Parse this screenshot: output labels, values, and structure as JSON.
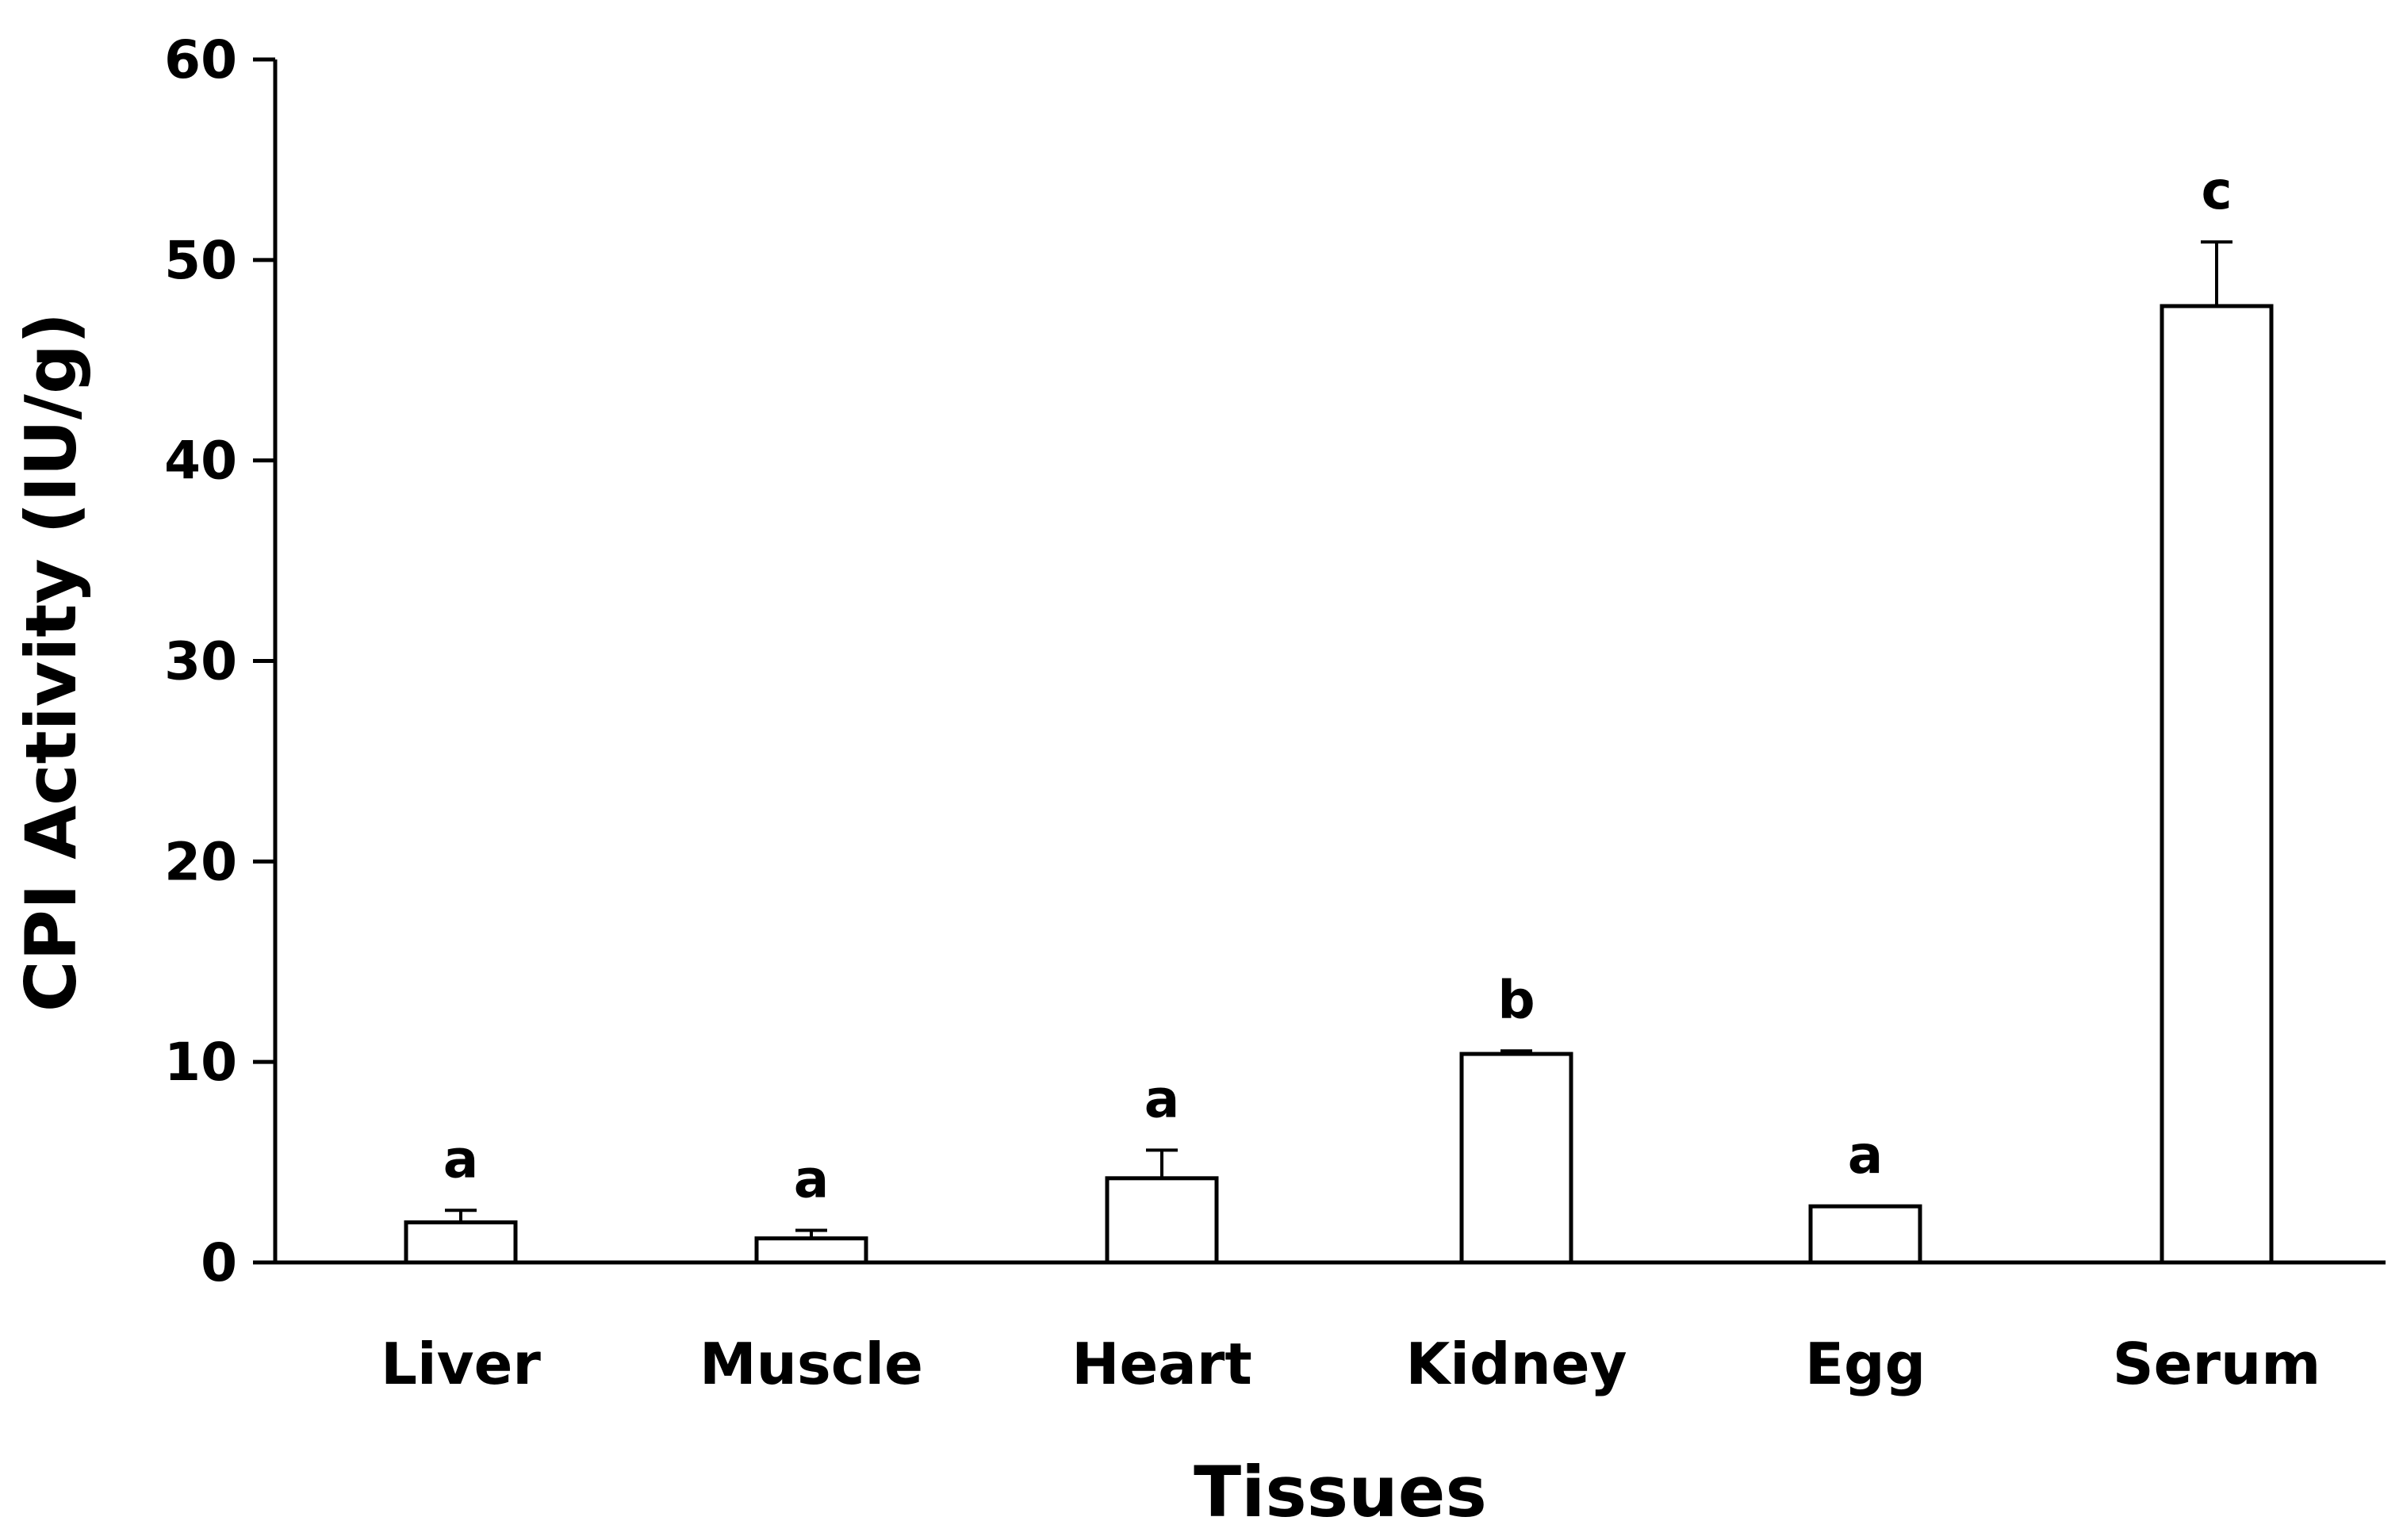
{
  "chart_data": {
    "type": "bar",
    "title": "",
    "xlabel": "Tissues",
    "ylabel": "CPI Activity (IU/g)",
    "ylim": [
      0,
      60
    ],
    "yticks": [
      0,
      10,
      20,
      30,
      40,
      50,
      60
    ],
    "ytick_labels": [
      "0",
      "10",
      "20",
      "30",
      "40",
      "50",
      "60"
    ],
    "categories": [
      "Liver",
      "Muscle",
      "Heart",
      "Kidney",
      "Egg",
      "Serum"
    ],
    "values": [
      2.0,
      1.2,
      4.2,
      10.4,
      2.8,
      47.7
    ],
    "errors": [
      0.6,
      0.4,
      1.4,
      0.15,
      0.0,
      3.2
    ],
    "significance": [
      "a",
      "a",
      "a",
      "b",
      "a",
      "c"
    ],
    "grid": false,
    "legend": "none",
    "bar_fill": "#ffffff",
    "bar_stroke": "#000000"
  }
}
